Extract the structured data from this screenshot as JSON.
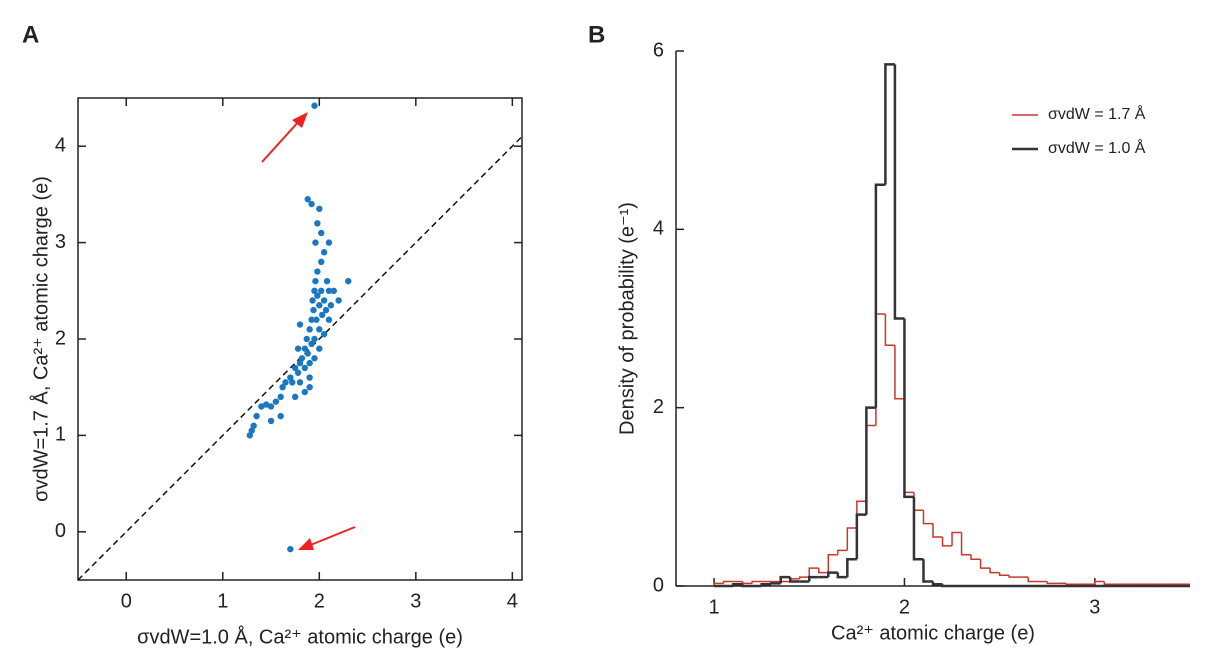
{
  "chart_data": [
    {
      "type": "scatter",
      "panel_label": "A",
      "x_label": "σvdW=1.0 Å, Ca²⁺ atomic charge (e)",
      "y_label": "σvdW=1.7 Å, Ca²⁺ atomic charge (e)",
      "xlim": [
        -0.5,
        4.1
      ],
      "ylim": [
        -0.5,
        4.5
      ],
      "xticks": [
        0,
        1,
        2,
        3,
        4
      ],
      "yticks": [
        0,
        1,
        2,
        3,
        4
      ],
      "identity_line": true,
      "color": "#1a78c2",
      "x": [
        1.95,
        1.7,
        1.28,
        1.3,
        1.32,
        1.35,
        1.4,
        1.45,
        1.5,
        1.55,
        1.6,
        1.62,
        1.65,
        1.7,
        1.72,
        1.75,
        1.78,
        1.8,
        1.8,
        1.82,
        1.85,
        1.85,
        1.87,
        1.88,
        1.9,
        1.9,
        1.9,
        1.92,
        1.92,
        1.93,
        1.94,
        1.95,
        1.95,
        1.95,
        1.96,
        1.97,
        1.98,
        1.98,
        2.0,
        2.0,
        2.0,
        2.02,
        2.02,
        2.03,
        2.05,
        2.05,
        2.07,
        2.08,
        2.1,
        2.1,
        2.12,
        2.15,
        2.2,
        2.3,
        1.88,
        1.92,
        1.98,
        2.0,
        2.02,
        1.96,
        2.05,
        2.1,
        1.75,
        1.85,
        1.9,
        1.6,
        1.5,
        1.8,
        1.78
      ],
      "y": [
        4.42,
        -0.18,
        1.0,
        1.05,
        1.1,
        1.2,
        1.3,
        1.32,
        1.3,
        1.35,
        1.4,
        1.5,
        1.55,
        1.6,
        1.55,
        1.7,
        1.65,
        1.75,
        1.55,
        1.8,
        1.9,
        1.7,
        2.0,
        1.85,
        2.1,
        1.75,
        1.6,
        2.2,
        1.95,
        2.4,
        2.3,
        2.5,
        2.0,
        1.8,
        2.6,
        2.2,
        2.7,
        2.45,
        2.35,
        2.1,
        1.9,
        2.5,
        2.8,
        2.25,
        2.4,
        2.05,
        2.3,
        2.6,
        2.2,
        2.5,
        2.35,
        2.5,
        2.4,
        2.6,
        3.45,
        3.4,
        3.2,
        3.35,
        3.1,
        3.0,
        2.9,
        3.0,
        1.4,
        1.45,
        1.5,
        1.2,
        1.15,
        2.15,
        1.9
      ]
    },
    {
      "type": "histogram",
      "panel_label": "B",
      "x_label": "Ca²⁺ atomic charge (e)",
      "y_label": "Density of probability (e⁻¹)",
      "xlim": [
        0.8,
        3.5
      ],
      "ylim": [
        0,
        6
      ],
      "xticks": [
        1,
        2,
        3
      ],
      "yticks": [
        0,
        2,
        4,
        6
      ],
      "legend": "top-right",
      "bins": [
        1,
        1.05,
        1.1,
        1.15,
        1.2,
        1.25,
        1.3,
        1.35,
        1.4,
        1.45,
        1.5,
        1.55,
        1.6,
        1.65,
        1.7,
        1.75,
        1.8,
        1.85,
        1.9,
        1.95,
        2,
        2.05,
        2.1,
        2.15,
        2.2,
        2.25,
        2.3,
        2.35,
        2.4,
        2.45,
        2.5,
        2.55,
        2.6,
        2.65,
        2.7,
        2.75,
        2.8,
        2.85,
        2.9,
        2.95,
        3,
        3.05,
        3.1,
        3.15,
        3.2,
        3.25,
        3.3,
        3.35,
        3.4,
        3.45,
        3.5
      ],
      "series": [
        {
          "name": "σvdW = 1.7 Å",
          "color": "#c8372d",
          "values": [
            0.03,
            0.05,
            0.05,
            0.03,
            0.05,
            0.05,
            0.05,
            0.05,
            0.08,
            0.1,
            0.2,
            0.15,
            0.35,
            0.4,
            0.65,
            0.95,
            1.8,
            3.05,
            2.7,
            2.1,
            1.05,
            0.85,
            0.7,
            0.55,
            0.45,
            0.6,
            0.35,
            0.3,
            0.2,
            0.15,
            0.12,
            0.1,
            0.1,
            0.05,
            0.05,
            0.03,
            0.03,
            0.02,
            0.02,
            0.02,
            0.05,
            0.02,
            0.02,
            0.02,
            0.02,
            0.02,
            0.02,
            0.02,
            0.02,
            0.02
          ]
        },
        {
          "name": "σvdW = 1.0 Å",
          "color": "#333333",
          "values": [
            0,
            0,
            0.02,
            0,
            0,
            0.02,
            0.03,
            0.1,
            0.05,
            0.05,
            0.1,
            0.1,
            0.15,
            0.1,
            0.3,
            0.8,
            2.0,
            4.5,
            5.85,
            3.0,
            1.0,
            0.3,
            0.05,
            0.02,
            0,
            0,
            0,
            0,
            0,
            0,
            0,
            0,
            0,
            0,
            0,
            0,
            0,
            0,
            0,
            0,
            0,
            0,
            0,
            0,
            0,
            0,
            0,
            0,
            0,
            0
          ]
        }
      ]
    }
  ]
}
